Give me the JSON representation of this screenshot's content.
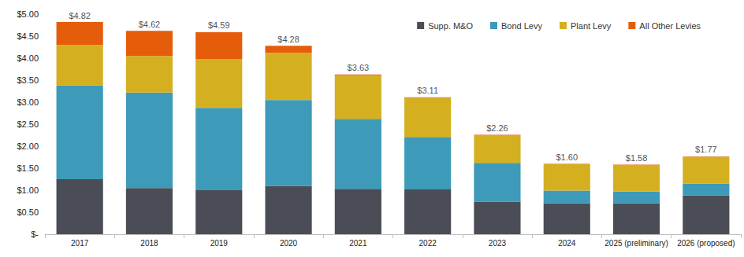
{
  "chart_data": {
    "type": "bar",
    "stacked": true,
    "grid": false,
    "legend": "top-right",
    "categories": [
      "2017",
      "2018",
      "2019",
      "2020",
      "2021",
      "2022",
      "2023",
      "2024",
      "2025 (preliminary)",
      "2026 (proposed)"
    ],
    "series": [
      {
        "name": "Supp. M&O",
        "color": "#4a4d55",
        "values": [
          1.25,
          1.05,
          1.0,
          1.1,
          1.03,
          1.02,
          0.74,
          0.7,
          0.7,
          0.88
        ]
      },
      {
        "name": "Bond Levy",
        "color": "#3d9ab8",
        "values": [
          2.13,
          2.17,
          1.87,
          1.95,
          1.59,
          1.19,
          0.88,
          0.29,
          0.27,
          0.27
        ]
      },
      {
        "name": "Plant Levy",
        "color": "#d4b021",
        "values": [
          0.92,
          0.83,
          1.11,
          1.07,
          0.99,
          0.89,
          0.63,
          0.6,
          0.6,
          0.61
        ]
      },
      {
        "name": "All Other Levies",
        "color": "#e55d0b",
        "values": [
          0.52,
          0.57,
          0.61,
          0.16,
          0.02,
          0.01,
          0.01,
          0.01,
          0.01,
          0.01
        ]
      }
    ],
    "totals": [
      4.82,
      4.62,
      4.59,
      4.28,
      3.63,
      3.11,
      2.26,
      1.6,
      1.58,
      1.77
    ],
    "total_labels": [
      "$4.82",
      "$4.62",
      "$4.59",
      "$4.28",
      "$3.63",
      "$3.11",
      "$2.26",
      "$1.60",
      "$1.58",
      "$1.77"
    ],
    "ylim": [
      0,
      5
    ],
    "yticks": [
      {
        "value": 0,
        "label": "$-"
      },
      {
        "value": 0.5,
        "label": "$0.50"
      },
      {
        "value": 1,
        "label": "$1.00"
      },
      {
        "value": 1.5,
        "label": "$1.50"
      },
      {
        "value": 2,
        "label": "$2.00"
      },
      {
        "value": 2.5,
        "label": "$2.50"
      },
      {
        "value": 3,
        "label": "$3.00"
      },
      {
        "value": 3.5,
        "label": "$3.50"
      },
      {
        "value": 4,
        "label": "$4.00"
      },
      {
        "value": 4.5,
        "label": "$4.50"
      },
      {
        "value": 5,
        "label": "$5.00"
      }
    ]
  }
}
